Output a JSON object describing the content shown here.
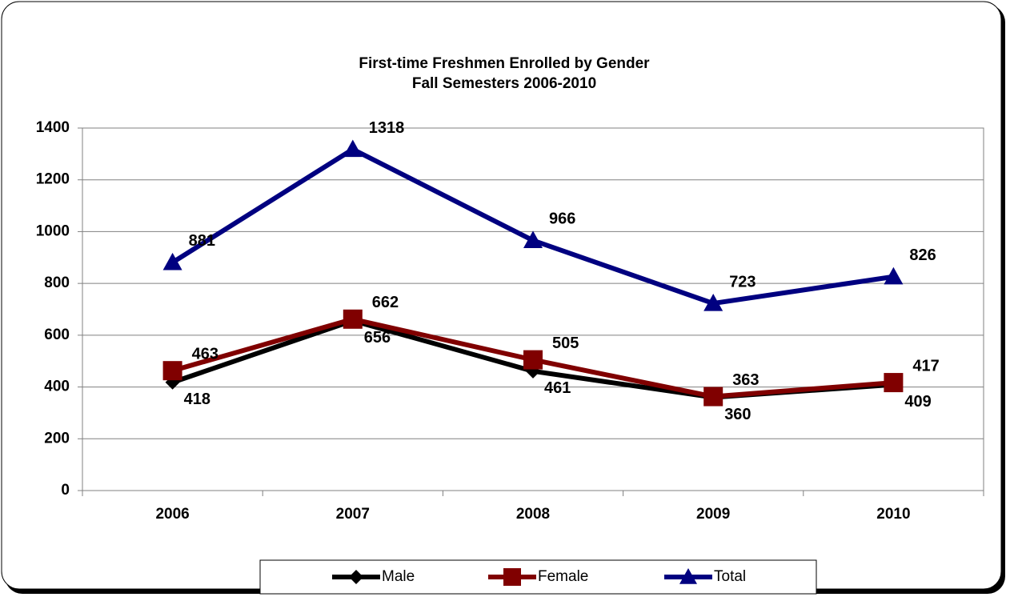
{
  "chart_data": {
    "type": "line",
    "title": "First-time Freshmen Enrolled by Gender",
    "subtitle": "Fall Semesters 2006-2010",
    "categories": [
      "2006",
      "2007",
      "2008",
      "2009",
      "2010"
    ],
    "series": [
      {
        "name": "Male",
        "color": "#000000",
        "marker": "diamond",
        "values": [
          418,
          656,
          461,
          360,
          409
        ]
      },
      {
        "name": "Female",
        "color": "#800000",
        "marker": "square",
        "values": [
          463,
          662,
          505,
          363,
          417
        ]
      },
      {
        "name": "Total",
        "color": "#000080",
        "marker": "triangle",
        "values": [
          881,
          1318,
          966,
          723,
          826
        ]
      }
    ],
    "ylim": [
      0,
      1400
    ],
    "yticks": [
      0,
      200,
      400,
      600,
      800,
      1000,
      1200,
      1400
    ],
    "grid": true,
    "legend": "bottom"
  }
}
